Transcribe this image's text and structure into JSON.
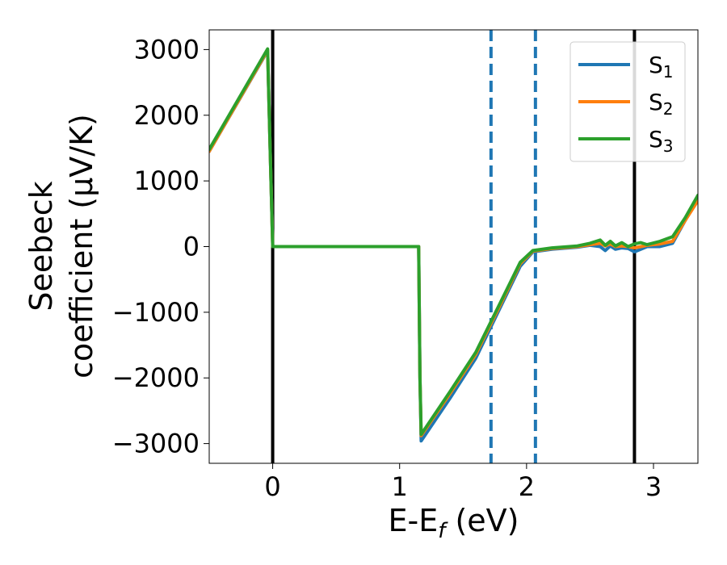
{
  "chart_data": {
    "type": "line",
    "xlabel": "E-E",
    "xlabel_sub": "f",
    "xlabel_unit": " (eV)",
    "ylabel_line1": "Seebeck",
    "ylabel_line2": "coefficient  (μV/K)",
    "xlim": [
      -0.5,
      3.35
    ],
    "ylim": [
      -3300,
      3300
    ],
    "xticks": [
      0,
      1,
      2,
      3
    ],
    "xtick_labels": [
      "0",
      "1",
      "2",
      "3"
    ],
    "yticks": [
      -3000,
      -2000,
      -1000,
      0,
      1000,
      2000,
      3000
    ],
    "ytick_labels": [
      "−3000",
      "−2000",
      "−1000",
      "0",
      "1000",
      "2000",
      "3000"
    ],
    "grid": false,
    "legend_position": "top-right",
    "series": [
      {
        "name": "S1",
        "label_main": "S",
        "label_sub": "1",
        "color": "#1f77b4",
        "x": [
          -0.5,
          -0.04,
          -0.02,
          0.0,
          1.15,
          1.16,
          1.17,
          1.4,
          1.6,
          1.8,
          1.95,
          2.05,
          2.2,
          2.4,
          2.5,
          2.58,
          2.62,
          2.66,
          2.7,
          2.75,
          2.8,
          2.85,
          2.9,
          2.95,
          3.05,
          3.15,
          3.25,
          3.35
        ],
        "y": [
          1450,
          2980,
          1500,
          0,
          0,
          -2000,
          -2960,
          -2300,
          -1700,
          -900,
          -300,
          -80,
          -40,
          -10,
          20,
          0,
          -60,
          10,
          -40,
          -20,
          -30,
          -80,
          -40,
          0,
          0,
          50,
          400,
          760
        ]
      },
      {
        "name": "S2",
        "label_main": "S",
        "label_sub": "2",
        "color": "#ff7f0e",
        "x": [
          -0.5,
          -0.04,
          -0.02,
          0.0,
          1.15,
          1.16,
          1.17,
          1.4,
          1.6,
          1.8,
          1.95,
          2.05,
          2.2,
          2.4,
          2.5,
          2.58,
          2.62,
          2.66,
          2.7,
          2.75,
          2.8,
          2.85,
          2.9,
          2.95,
          3.05,
          3.15,
          3.25,
          3.35
        ],
        "y": [
          1450,
          2990,
          1500,
          0,
          0,
          -2000,
          -2880,
          -2230,
          -1640,
          -860,
          -260,
          -70,
          -30,
          0,
          30,
          50,
          10,
          40,
          0,
          10,
          0,
          -20,
          0,
          20,
          40,
          80,
          400,
          700
        ]
      },
      {
        "name": "S3",
        "label_main": "S",
        "label_sub": "3",
        "color": "#2ca02c",
        "x": [
          -0.5,
          -0.04,
          -0.02,
          0.0,
          1.15,
          1.16,
          1.17,
          1.4,
          1.6,
          1.8,
          1.95,
          2.05,
          2.2,
          2.4,
          2.5,
          2.58,
          2.62,
          2.66,
          2.7,
          2.75,
          2.8,
          2.85,
          2.9,
          2.95,
          3.05,
          3.15,
          3.25,
          3.35
        ],
        "y": [
          1480,
          3010,
          1500,
          0,
          0,
          -2000,
          -2860,
          -2200,
          -1610,
          -830,
          -240,
          -60,
          -20,
          10,
          50,
          100,
          20,
          80,
          10,
          60,
          0,
          40,
          60,
          30,
          80,
          150,
          440,
          780
        ]
      }
    ],
    "vlines": [
      {
        "x": 0.0,
        "style": "solid",
        "color": "#000000"
      },
      {
        "x": 2.85,
        "style": "solid",
        "color": "#000000"
      },
      {
        "x": 1.72,
        "style": "dashed",
        "color": "#1f77b4"
      },
      {
        "x": 2.07,
        "style": "dashed",
        "color": "#1f77b4"
      }
    ]
  }
}
